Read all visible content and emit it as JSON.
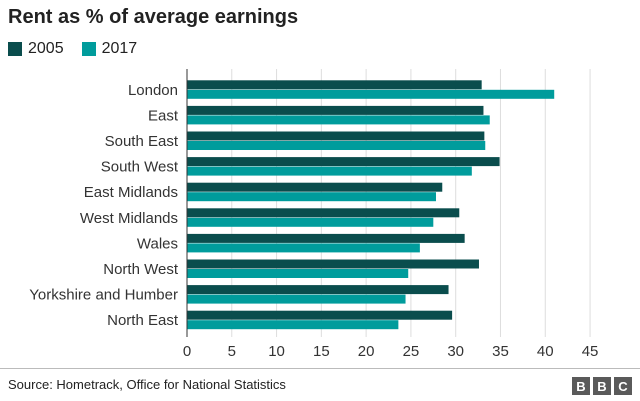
{
  "chart_data": {
    "type": "bar",
    "orientation": "horizontal",
    "title": "Rent as % of average earnings",
    "xlabel": "",
    "ylabel": "",
    "categories": [
      "London",
      "East",
      "South East",
      "South West",
      "East Midlands",
      "West Midlands",
      "Wales",
      "North West",
      "Yorkshire and Humber",
      "North East"
    ],
    "series": [
      {
        "name": "2005",
        "color": "#0a4d4d",
        "values": [
          32.9,
          33.1,
          33.2,
          34.9,
          28.5,
          30.4,
          31.0,
          32.6,
          29.2,
          29.6
        ]
      },
      {
        "name": "2017",
        "color": "#009c9c",
        "values": [
          41.0,
          33.8,
          33.3,
          31.8,
          27.8,
          27.5,
          26.0,
          24.7,
          24.4,
          23.6
        ]
      }
    ],
    "xlim": [
      0,
      46
    ],
    "xticks": [
      0,
      5,
      10,
      15,
      20,
      25,
      30,
      35,
      40,
      45
    ],
    "grid": true,
    "legend_position": "top-left"
  },
  "footer": {
    "source": "Source: Hometrack, Office for National Statistics",
    "logo": [
      "B",
      "B",
      "C"
    ]
  }
}
